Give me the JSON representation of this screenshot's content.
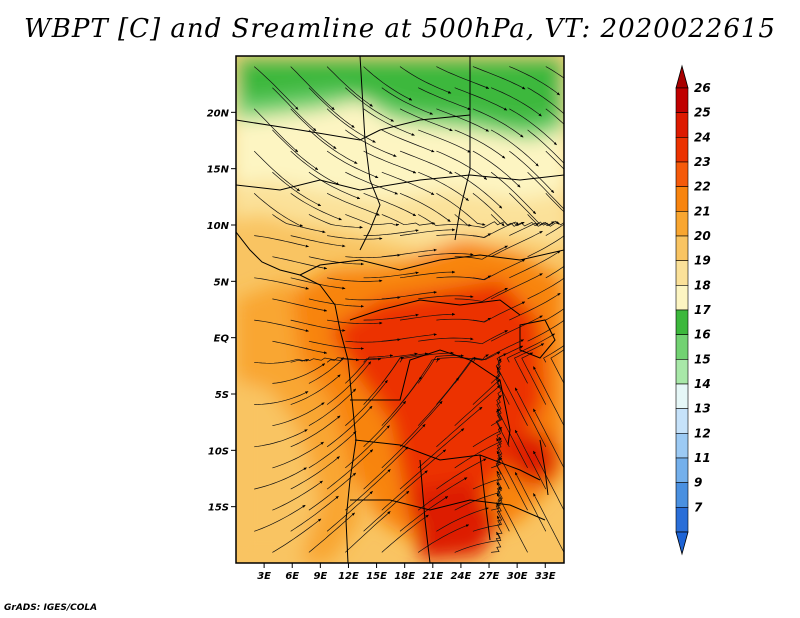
{
  "title": "WBPT [C] and Sreamline at 500hPa, VT: 2020022615",
  "credit": "GrADS: IGES/COLA",
  "map": {
    "lat_labels": [
      "20N",
      "15N",
      "10N",
      "5N",
      "EQ",
      "5S",
      "10S",
      "15S"
    ],
    "lat_values": [
      20,
      15,
      10,
      5,
      0,
      -5,
      -10,
      -15
    ],
    "lon_labels": [
      "3E",
      "6E",
      "9E",
      "12E",
      "15E",
      "18E",
      "21E",
      "24E",
      "27E",
      "30E",
      "33E"
    ],
    "lon_values": [
      3,
      6,
      9,
      12,
      15,
      18,
      21,
      24,
      27,
      30,
      33
    ],
    "extent": {
      "lon_min": 0,
      "lon_max": 35,
      "lat_min": -20,
      "lat_max": 25
    }
  },
  "colorbar": {
    "labels": [
      "26",
      "25",
      "24",
      "23",
      "22",
      "21",
      "20",
      "19",
      "18",
      "17",
      "16",
      "15",
      "14",
      "13",
      "12",
      "11",
      "9",
      "7"
    ],
    "colors": [
      "#c00000",
      "#dd1a00",
      "#ec3200",
      "#f55a0a",
      "#f8840e",
      "#f9a630",
      "#f9c462",
      "#fbe199",
      "#fdf5c2",
      "#3cb83c",
      "#72d272",
      "#a8e8a8",
      "#e6f7f7",
      "#c6e2fa",
      "#9ccaf4",
      "#74b0ec",
      "#4a90e0",
      "#2a6ed8"
    ],
    "top_arrow_color": "#a80000",
    "bottom_arrow_color": "#1e64d6"
  }
}
